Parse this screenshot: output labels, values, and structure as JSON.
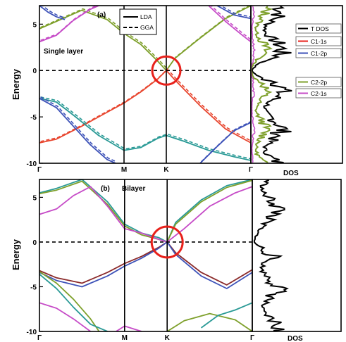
{
  "chart_data": [
    {
      "type": "line",
      "panel_label": "(a)",
      "annotation": "Single layer",
      "ylabel": "Energy",
      "ylim": [
        -10,
        7
      ],
      "yticks": [
        5,
        0,
        -5,
        -10
      ],
      "xticks": [
        "Γ",
        "M",
        "K",
        "Γ"
      ],
      "xtick_positions": [
        0,
        0.5,
        0.75,
        1.25
      ],
      "fermi_level": 0,
      "highlight": {
        "x": 0.75,
        "y": 0,
        "color": "#e8211b"
      },
      "method_legend": [
        {
          "name": "LDA",
          "style": "solid"
        },
        {
          "name": "GGA",
          "style": "dashed"
        }
      ],
      "series": [
        {
          "color": "#7ea02b",
          "x": [
            0,
            0.1,
            0.25,
            0.4,
            0.5,
            0.6,
            0.7,
            0.75,
            0.8,
            0.95,
            1.1,
            1.25
          ],
          "y": [
            4.5,
            5.3,
            6.5,
            5.5,
            4.0,
            2.8,
            1.0,
            0.0,
            1.3,
            3.5,
            5.6,
            7.0
          ]
        },
        {
          "color": "#e8462f",
          "x": [
            0,
            0.1,
            0.25,
            0.4,
            0.5,
            0.6,
            0.7,
            0.75,
            0.8,
            0.95,
            1.1,
            1.25
          ],
          "y": [
            -7.8,
            -7.4,
            -6.0,
            -4.5,
            -3.5,
            -2.3,
            -0.9,
            0.0,
            -1.0,
            -3.8,
            -6.3,
            -7.8
          ]
        },
        {
          "color": "#2a9a96",
          "x": [
            0,
            0.1,
            0.2,
            0.35,
            0.5,
            0.6,
            0.7,
            0.75,
            0.85,
            1.0,
            1.15,
            1.25
          ],
          "y": [
            -3.0,
            -3.4,
            -4.8,
            -7.0,
            -8.6,
            -8.3,
            -7.3,
            -7.0,
            -7.6,
            -8.6,
            -9.3,
            -9.7
          ]
        },
        {
          "color": "#3d52b8",
          "x": [
            0,
            0.1,
            0.2,
            0.3,
            0.4,
            0.45
          ],
          "y": [
            -3.0,
            -4.0,
            -6.0,
            -8.0,
            -9.6,
            -10.0
          ]
        },
        {
          "color": "#3d52b8",
          "x": [
            0.95,
            1.05,
            1.15,
            1.25
          ],
          "y": [
            -10.0,
            -8.2,
            -6.5,
            -5.6
          ]
        },
        {
          "color": "#c64bc7",
          "x": [
            0,
            0.1,
            0.2,
            0.3,
            0.35
          ],
          "y": [
            3.1,
            3.8,
            5.4,
            6.6,
            7.0
          ]
        },
        {
          "color": "#c64bc7",
          "x": [
            1.0,
            1.1,
            1.2,
            1.25
          ],
          "y": [
            7.0,
            5.3,
            3.8,
            3.1
          ]
        },
        {
          "color": "#3d52b8",
          "x": [
            0,
            0.05,
            0.1,
            0.15
          ],
          "y": [
            7.0,
            6.3,
            5.8,
            5.5
          ]
        },
        {
          "color": "#3d52b8",
          "x": [
            1.05,
            1.15,
            1.25
          ],
          "y": [
            7.0,
            6.0,
            5.6
          ]
        }
      ],
      "dos": {
        "xlabel": "",
        "legend": [
          {
            "name": "T DOS",
            "color": "#000000"
          },
          {
            "name": "C1-1s",
            "color": "#e8211b"
          },
          {
            "name": "C1-2p",
            "color": "#3d52b8"
          },
          {
            "name": "C2-2p",
            "color": "#7ea02b"
          },
          {
            "name": "C2-1s",
            "color": "#c64bc7"
          }
        ]
      }
    },
    {
      "type": "line",
      "panel_label": "(b)",
      "annotation": "Bilayer",
      "ylabel": "Energy",
      "ylim": [
        -10,
        7
      ],
      "yticks": [
        5,
        0,
        -5,
        -10
      ],
      "xticks": [
        "Γ",
        "M",
        "K",
        "Γ"
      ],
      "xtick_positions": [
        0,
        0.5,
        0.75,
        1.25
      ],
      "fermi_level": 0,
      "highlight": {
        "x": 0.75,
        "y": 0,
        "color": "#e8211b"
      },
      "series": [
        {
          "color": "#2a9a96",
          "x": [
            0,
            0.1,
            0.25,
            0.4,
            0.5,
            0.6,
            0.7,
            0.75,
            0.8,
            0.95,
            1.1,
            1.25
          ],
          "y": [
            5.5,
            6.0,
            7.0,
            4.5,
            2.0,
            1.0,
            0.5,
            0.0,
            2.2,
            4.7,
            6.3,
            7.0
          ]
        },
        {
          "color": "#7ea02b",
          "x": [
            0,
            0.1,
            0.25,
            0.4,
            0.5,
            0.6,
            0.7,
            0.75,
            0.8,
            0.95,
            1.1,
            1.25
          ],
          "y": [
            5.4,
            5.8,
            6.8,
            4.2,
            1.8,
            0.8,
            0.3,
            0.0,
            2.0,
            4.5,
            6.1,
            6.9
          ]
        },
        {
          "color": "#c64bc7",
          "x": [
            0,
            0.1,
            0.2,
            0.3,
            0.4,
            0.5,
            0.6,
            0.7,
            0.75,
            0.85,
            1.0,
            1.15,
            1.25
          ],
          "y": [
            3.1,
            3.7,
            5.2,
            6.2,
            4.0,
            1.5,
            1.0,
            0.3,
            0.0,
            1.5,
            4.0,
            5.5,
            6.2
          ]
        },
        {
          "color": "#8b2a2a",
          "x": [
            0,
            0.1,
            0.25,
            0.4,
            0.5,
            0.6,
            0.7,
            0.75,
            0.8,
            0.95,
            1.1,
            1.25
          ],
          "y": [
            -3.2,
            -4.0,
            -4.6,
            -3.4,
            -2.4,
            -1.6,
            -0.6,
            0.0,
            -1.2,
            -3.4,
            -4.8,
            -3.1
          ]
        },
        {
          "color": "#3d52b8",
          "x": [
            0,
            0.1,
            0.25,
            0.4,
            0.5,
            0.6,
            0.7,
            0.75,
            0.8,
            0.95,
            1.1,
            1.25
          ],
          "y": [
            -3.4,
            -4.3,
            -5.0,
            -3.8,
            -2.7,
            -1.8,
            -0.7,
            0.0,
            -1.4,
            -3.8,
            -5.2,
            -3.4
          ]
        },
        {
          "color": "#7ea02b",
          "x": [
            0,
            0.1,
            0.2,
            0.3,
            0.35
          ],
          "y": [
            -3.3,
            -4.6,
            -6.4,
            -8.6,
            -10.0
          ]
        },
        {
          "color": "#2a9a96",
          "x": [
            0,
            0.1,
            0.2,
            0.3,
            0.4
          ],
          "y": [
            -3.6,
            -5.2,
            -7.3,
            -9.2,
            -10.0
          ]
        },
        {
          "color": "#c64bc7",
          "x": [
            0,
            0.1,
            0.2,
            0.3
          ],
          "y": [
            -6.8,
            -7.4,
            -8.6,
            -10.0
          ]
        },
        {
          "color": "#7ea02b",
          "x": [
            0.75,
            0.85,
            1.0,
            1.15,
            1.25
          ],
          "y": [
            -10.0,
            -8.8,
            -8.0,
            -8.7,
            -10.0
          ]
        },
        {
          "color": "#2a9a96",
          "x": [
            0.95,
            1.05,
            1.15,
            1.25
          ],
          "y": [
            -9.6,
            -8.2,
            -7.6,
            -6.8
          ]
        },
        {
          "color": "#c64bc7",
          "x": [
            0.45,
            0.5,
            0.6
          ],
          "y": [
            -10.0,
            -9.4,
            -10.0
          ]
        }
      ],
      "dos": {
        "xlabel": "DOS"
      }
    }
  ],
  "dos_axis_labels": {
    "top_panel_bottom": "DOS",
    "bottom_panel_bottom": "DOS"
  }
}
